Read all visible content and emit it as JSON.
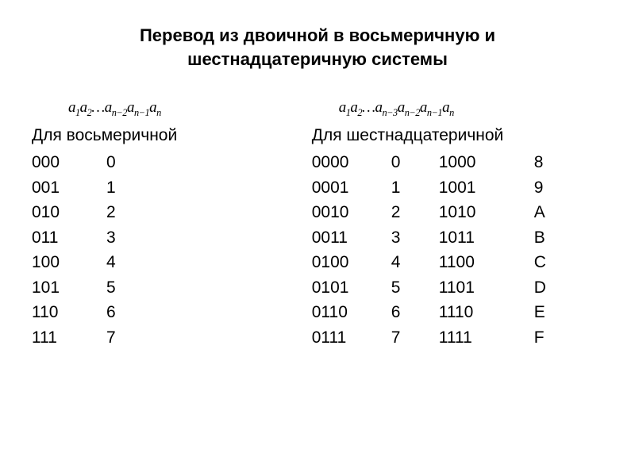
{
  "title_line1": "Перевод из двоичной в восьмеричную и",
  "title_line2": "шестнадцатеричную системы",
  "left": {
    "formula": "a₁a₂…aₙ₋₂aₙ₋₁aₙ",
    "subhead": "Для восьмеричной",
    "rows": [
      {
        "bin": "000",
        "val": "0"
      },
      {
        "bin": "001",
        "val": "1"
      },
      {
        "bin": "010",
        "val": "2"
      },
      {
        "bin": "011",
        "val": "3"
      },
      {
        "bin": "100",
        "val": "4"
      },
      {
        "bin": "101",
        "val": "5"
      },
      {
        "bin": "110",
        "val": "6"
      },
      {
        "bin": "111",
        "val": "7"
      }
    ]
  },
  "right": {
    "formula": "a₁a₂…aₙ₋₃aₙ₋₂aₙ₋₁aₙ",
    "subhead": "Для шестнадцатеричной",
    "rows": [
      {
        "bin1": "0000",
        "val1": "0",
        "bin2": "1000",
        "val2": "8"
      },
      {
        "bin1": "0001",
        "val1": "1",
        "bin2": "1001",
        "val2": "9"
      },
      {
        "bin1": "0010",
        "val1": "2",
        "bin2": "1010",
        "val2": "A"
      },
      {
        "bin1": "0011",
        "val1": "3",
        "bin2": "1011",
        "val2": "B"
      },
      {
        "bin1": "0100",
        "val1": "4",
        "bin2": "1100",
        "val2": "C"
      },
      {
        "bin1": "0101",
        "val1": "5",
        "bin2": "1101",
        "val2": "D"
      },
      {
        "bin1": "0110",
        "val1": "6",
        "bin2": "1110",
        "val2": "E"
      },
      {
        "bin1": "0111",
        "val1": "7",
        "bin2": "1111",
        "val2": "F"
      }
    ]
  },
  "style": {
    "background": "#ffffff",
    "text_color": "#000000",
    "title_fontsize": 22,
    "body_fontsize": 21,
    "formula_fontsize": 19,
    "title_fontweight": "bold",
    "font_family_body": "Arial",
    "font_family_formula": "Times New Roman"
  }
}
